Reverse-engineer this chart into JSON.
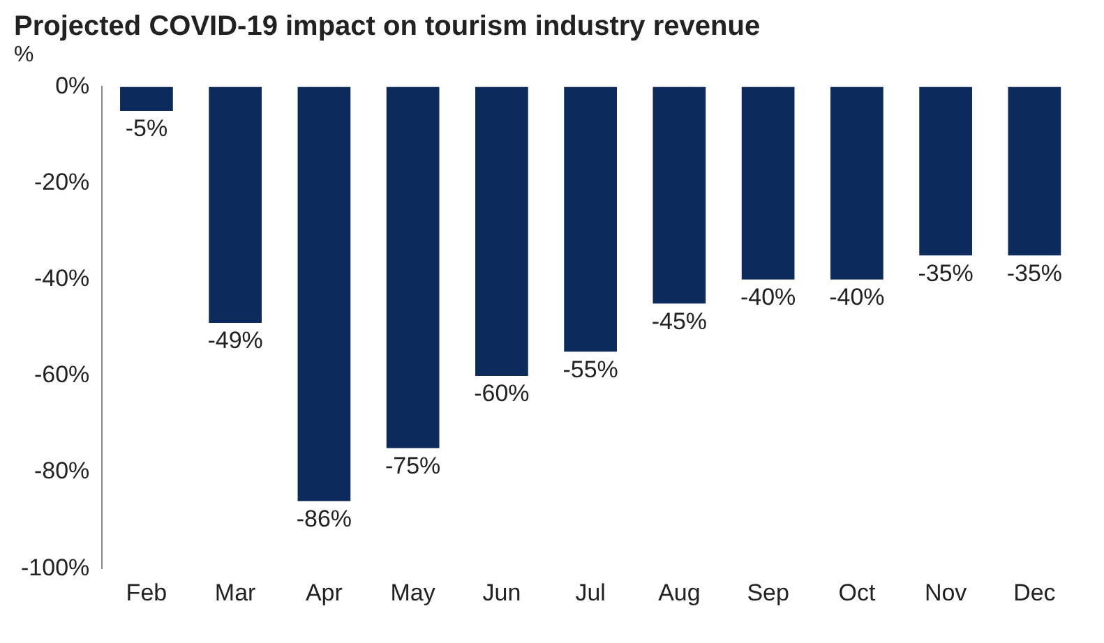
{
  "chart_data": {
    "type": "bar",
    "title": "Projected COVID-19 impact on tourism industry revenue",
    "ylabel": "%",
    "categories": [
      "Feb",
      "Mar",
      "Apr",
      "May",
      "Jun",
      "Jul",
      "Aug",
      "Sep",
      "Oct",
      "Nov",
      "Dec"
    ],
    "values": [
      -5,
      -49,
      -86,
      -75,
      -60,
      -55,
      -45,
      -40,
      -40,
      -35,
      -35
    ],
    "value_labels": [
      "-5%",
      "-49%",
      "-86%",
      "-75%",
      "-60%",
      "-55%",
      "-45%",
      "-40%",
      "-40%",
      "-35%",
      "-35%"
    ],
    "color": "#0c2a5b",
    "ylim": [
      -100,
      0
    ],
    "yticks": [
      {
        "value": -100,
        "label": "-100%"
      },
      {
        "value": -80,
        "label": "-80%"
      },
      {
        "value": -60,
        "label": "-60%"
      },
      {
        "value": -40,
        "label": "-40%"
      },
      {
        "value": -20,
        "label": "-20%"
      },
      {
        "value": 0,
        "label": "0%"
      }
    ],
    "grid": false,
    "legend": false
  }
}
